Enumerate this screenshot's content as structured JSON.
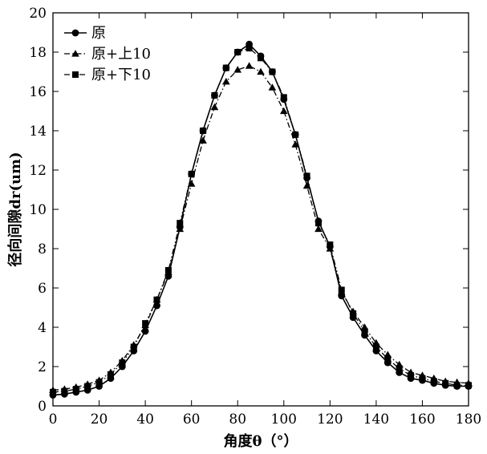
{
  "chart_data": {
    "type": "line",
    "title": "",
    "xlabel": "角度θ（°）",
    "ylabel": "径向间隙dr(um)",
    "xlim": [
      0,
      180
    ],
    "ylim": [
      0,
      20
    ],
    "xticks": [
      0,
      20,
      40,
      60,
      80,
      100,
      120,
      140,
      160,
      180
    ],
    "yticks": [
      0,
      2,
      4,
      6,
      8,
      10,
      12,
      14,
      16,
      18,
      20
    ],
    "grid": false,
    "legend_position": "top-left",
    "x": [
      0,
      5,
      10,
      15,
      20,
      25,
      30,
      35,
      40,
      45,
      50,
      55,
      60,
      65,
      70,
      75,
      80,
      85,
      90,
      95,
      100,
      105,
      110,
      115,
      120,
      125,
      130,
      135,
      140,
      145,
      150,
      155,
      160,
      165,
      170,
      175,
      180
    ],
    "series": [
      {
        "name": "原",
        "marker": "circle",
        "line_style": "solid",
        "color": "#000000",
        "values": [
          0.55,
          0.6,
          0.7,
          0.8,
          1.0,
          1.4,
          2.0,
          2.8,
          3.8,
          5.1,
          6.6,
          9.1,
          11.8,
          14.0,
          15.8,
          17.2,
          18.0,
          18.4,
          17.8,
          17.0,
          15.6,
          13.8,
          11.6,
          9.4,
          8.1,
          5.6,
          4.5,
          3.6,
          2.8,
          2.2,
          1.7,
          1.4,
          1.3,
          1.15,
          1.05,
          1.0,
          1.0
        ]
      },
      {
        "name": "原+上10",
        "marker": "triangle",
        "line_style": "dashdot",
        "color": "#000000",
        "values": [
          0.8,
          0.85,
          0.95,
          1.1,
          1.3,
          1.7,
          2.3,
          3.1,
          4.1,
          5.4,
          6.8,
          9.0,
          11.3,
          13.5,
          15.2,
          16.5,
          17.1,
          17.3,
          17.0,
          16.2,
          15.0,
          13.3,
          11.2,
          9.0,
          8.0,
          5.8,
          4.8,
          4.0,
          3.2,
          2.6,
          2.1,
          1.7,
          1.55,
          1.4,
          1.25,
          1.2,
          1.15
        ]
      },
      {
        "name": "原+下10",
        "marker": "square",
        "line_style": "dashdotdot",
        "color": "#000000",
        "values": [
          0.7,
          0.75,
          0.85,
          1.0,
          1.2,
          1.6,
          2.2,
          3.0,
          4.2,
          5.4,
          6.9,
          9.3,
          11.8,
          14.0,
          15.8,
          17.2,
          18.0,
          18.2,
          17.7,
          17.0,
          15.7,
          13.8,
          11.7,
          9.3,
          8.2,
          5.9,
          4.7,
          3.8,
          3.0,
          2.4,
          1.9,
          1.55,
          1.4,
          1.25,
          1.15,
          1.05,
          1.05
        ]
      }
    ]
  }
}
